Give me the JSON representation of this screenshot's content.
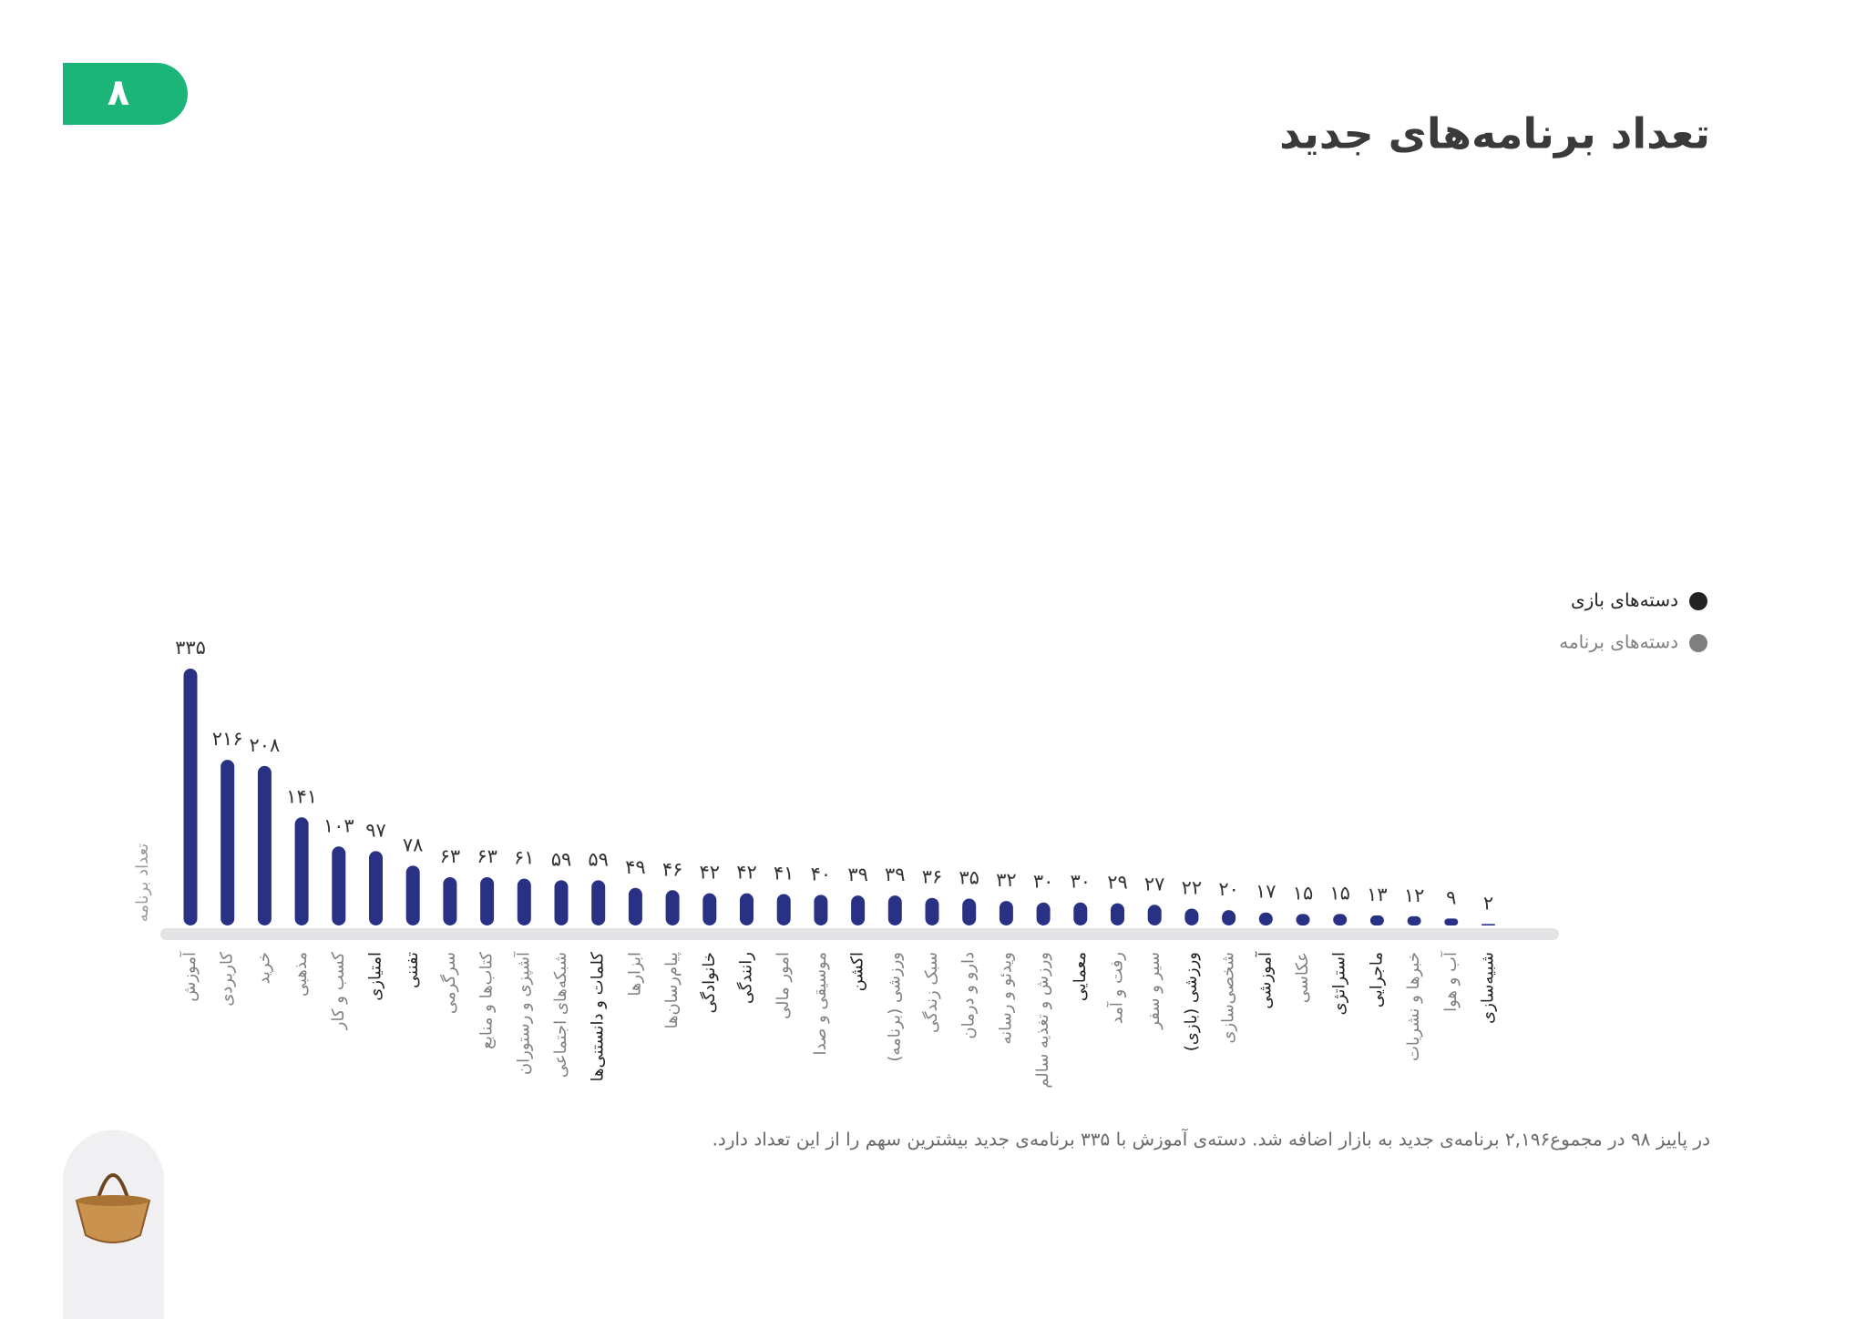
{
  "page_number": "۸",
  "chart_data": {
    "type": "bar",
    "title": "تعداد برنامه‌های جدید",
    "y_label": "تعداد برنامه",
    "caption": "در پاییز ۹۸ در مجموع۲,۱۹۶ برنامه‌ی جدید به بازار اضافه شد. دسته‌ی آموزش با ۳۳۵ برنامه‌ی جدید بیشترین سهم را از این تعداد دارد.",
    "legend": [
      {
        "name": "دسته‌های بازی",
        "color": "#222222"
      },
      {
        "name": "دسته‌های برنامه",
        "color": "#808080"
      }
    ],
    "color": "#283184",
    "categories": [
      "آموزش",
      "کاربردی",
      "خرید",
      "مذهبی",
      "کسب و کار",
      "امتیازی",
      "تفننی",
      "سرگرمی",
      "کتاب‌ها و منابع",
      "آشپزی و رستوران",
      "شبکه‌های اجتماعی",
      "کلمات و دانستنی‌ها",
      "ابزارها",
      "پیام‌رسان‌ها",
      "خانوادگی",
      "رانندگی",
      "امور مالی",
      "موسیقی و صدا",
      "اکشن",
      "ورزشی (برنامه)",
      "سبک زندگی",
      "دارو و درمان",
      "ویدئو و رسانه",
      "ورزش و تغذیه سالم",
      "معمایی",
      "رفت و آمد",
      "سیر و سفر",
      "ورزشی (بازی)",
      "شخصی‌سازی",
      "آموزشی",
      "عکاسی",
      "استراتژی",
      "ماجرایی",
      "خبرها و نشریات",
      "آب و هوا",
      "شبیه‌سازی"
    ],
    "category_colors": [
      "#808080",
      "#808080",
      "#808080",
      "#808080",
      "#808080",
      "#222222",
      "#222222",
      "#808080",
      "#808080",
      "#808080",
      "#808080",
      "#222222",
      "#808080",
      "#808080",
      "#222222",
      "#222222",
      "#808080",
      "#808080",
      "#222222",
      "#808080",
      "#808080",
      "#808080",
      "#808080",
      "#808080",
      "#222222",
      "#808080",
      "#808080",
      "#222222",
      "#808080",
      "#222222",
      "#808080",
      "#222222",
      "#222222",
      "#808080",
      "#808080",
      "#222222"
    ],
    "values": [
      335,
      216,
      208,
      141,
      103,
      97,
      78,
      63,
      63,
      61,
      59,
      59,
      49,
      46,
      42,
      42,
      41,
      40,
      39,
      39,
      36,
      35,
      32,
      30,
      30,
      29,
      27,
      22,
      20,
      17,
      15,
      15,
      13,
      12,
      9,
      2
    ],
    "value_labels": [
      "۳۳۵",
      "۲۱۶",
      "۲۰۸",
      "۱۴۱",
      "۱۰۳",
      "۹۷",
      "۷۸",
      "۶۳",
      "۶۳",
      "۶۱",
      "۵۹",
      "۵۹",
      "۴۹",
      "۴۶",
      "۴۲",
      "۴۲",
      "۴۱",
      "۴۰",
      "۳۹",
      "۳۹",
      "۳۶",
      "۳۵",
      "۳۲",
      "۳۰",
      "۳۰",
      "۲۹",
      "۲۷",
      "۲۲",
      "۲۰",
      "۱۷",
      "۱۵",
      "۱۵",
      "۱۳",
      "۱۲",
      "۹",
      "۲"
    ],
    "ylim": [
      0,
      335
    ]
  }
}
